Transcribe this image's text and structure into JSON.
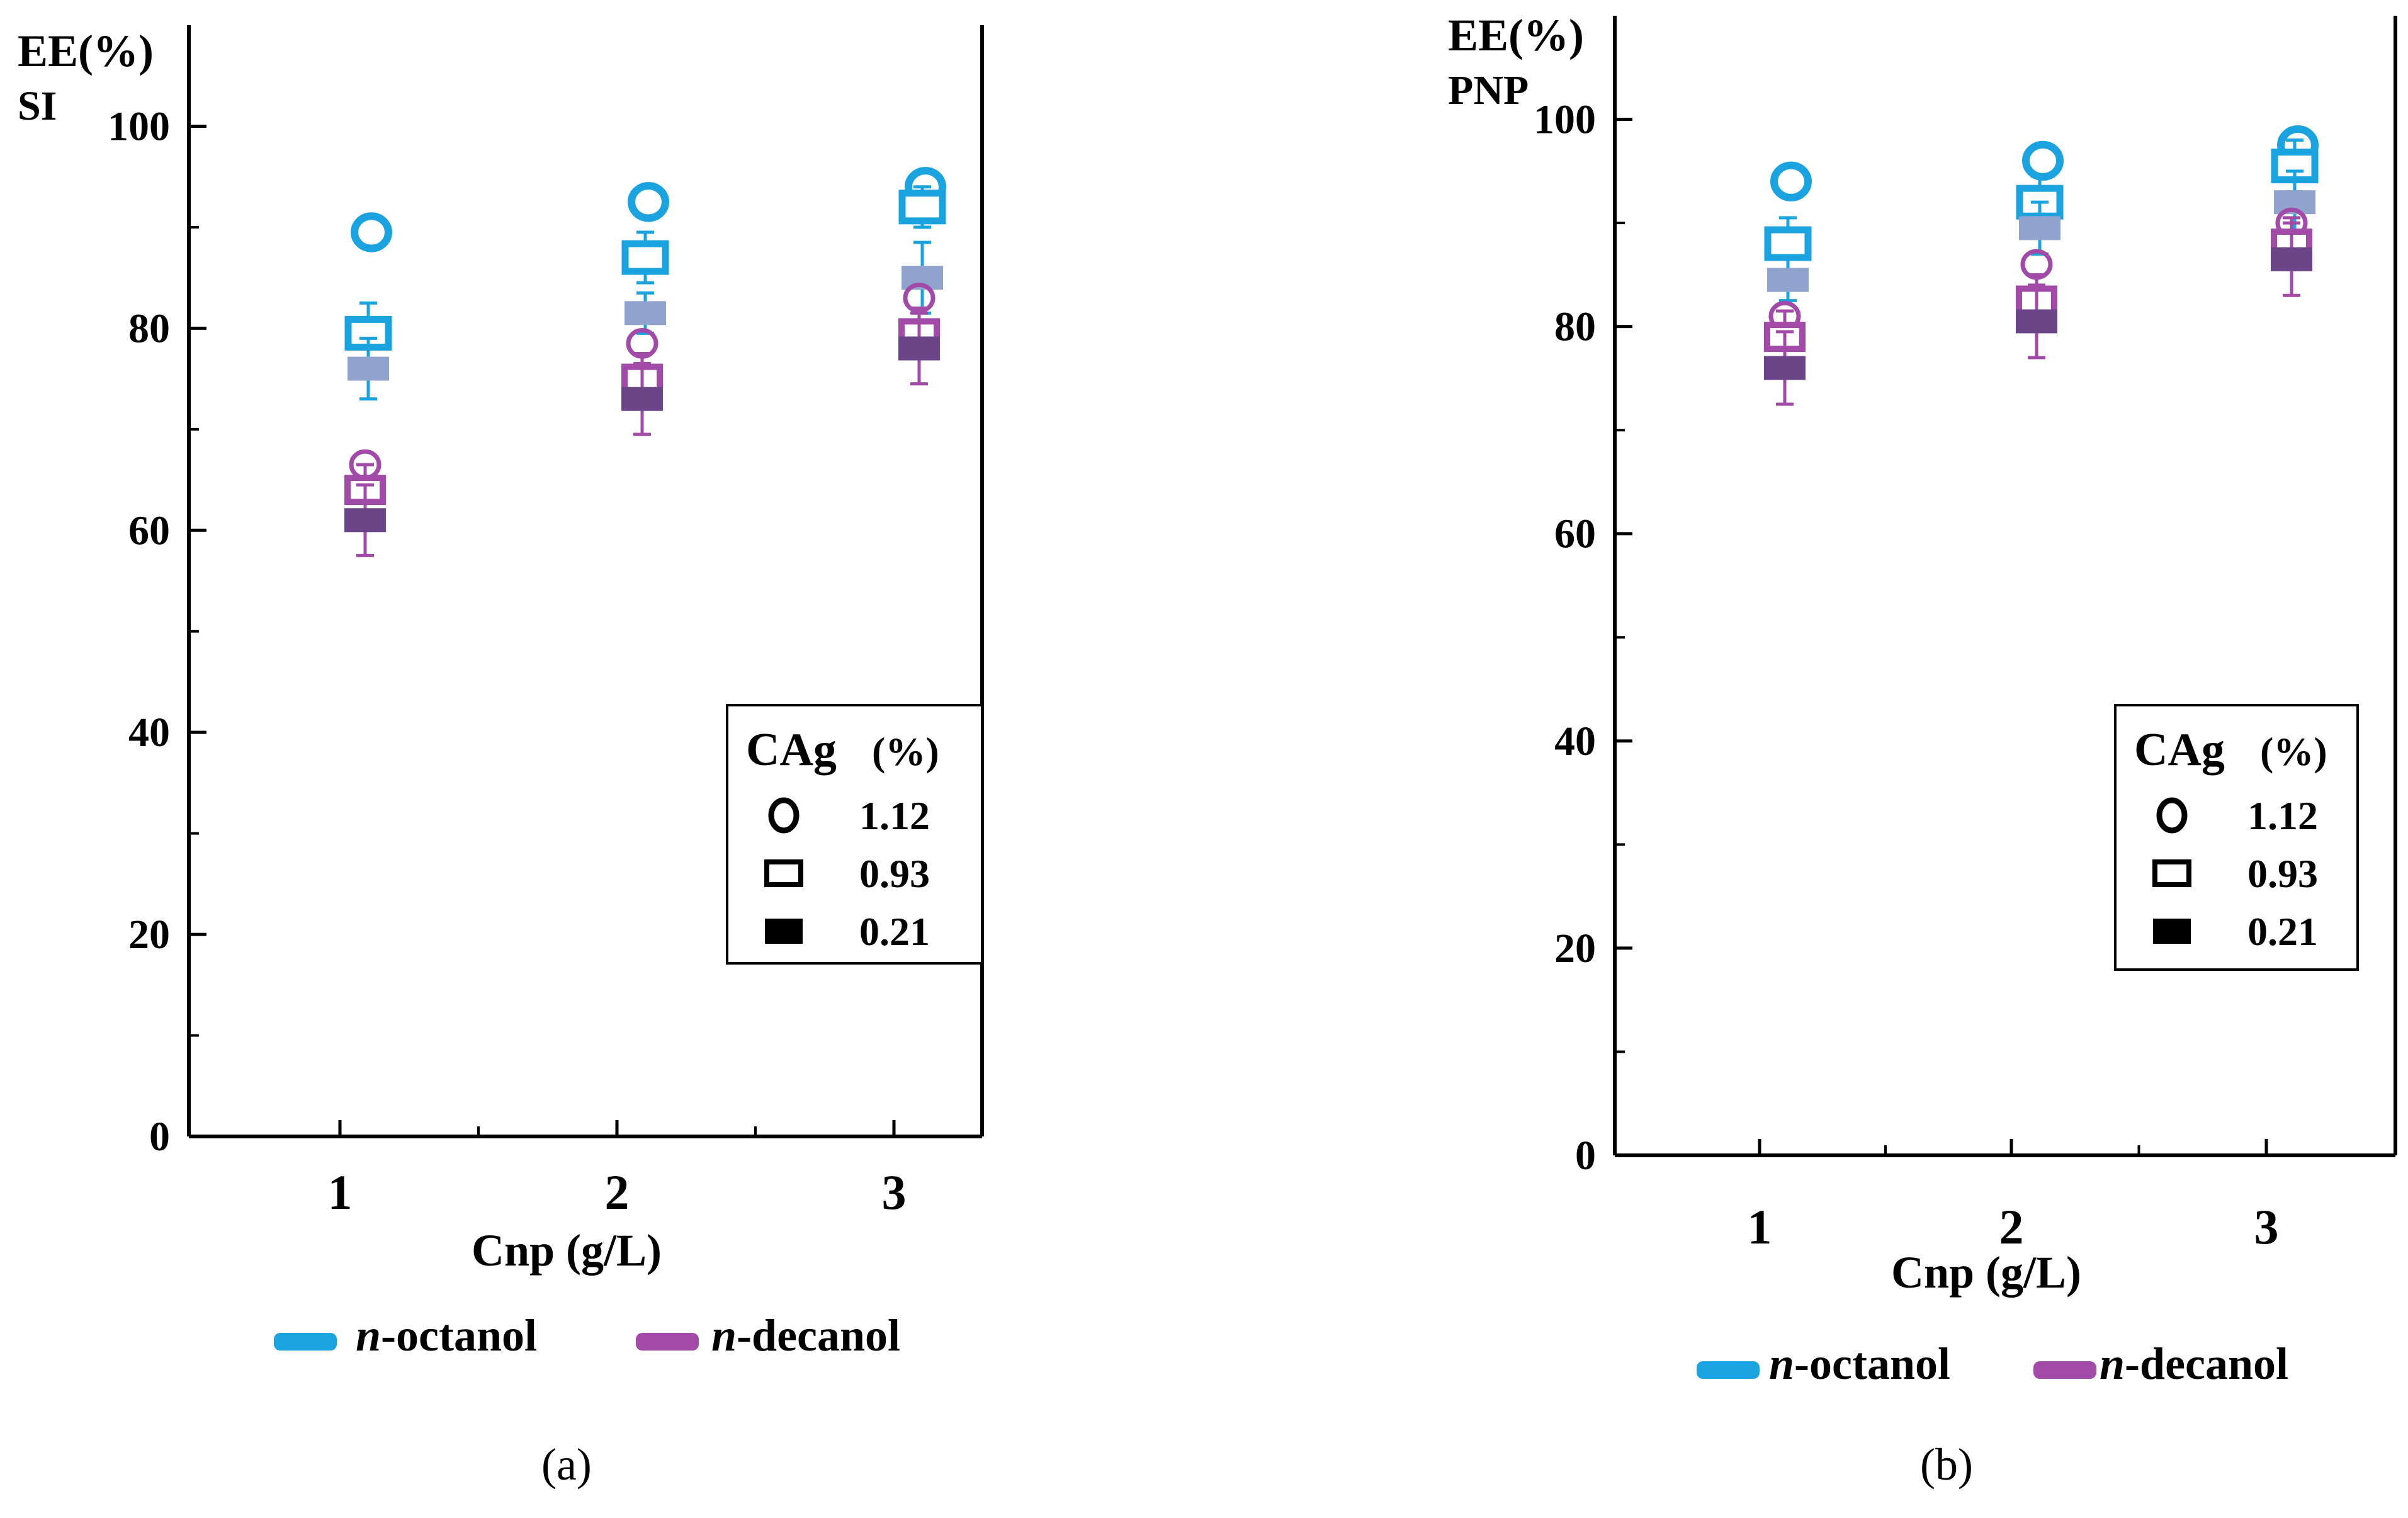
{
  "colors": {
    "n-octanol": "#1ba3e0",
    "n-octanol-light": "#8fa3cc",
    "n-decanol": "#a24aa8",
    "n-decanol-dark": "#6b4588",
    "axis": "#000000"
  },
  "legend": {
    "title_main": "CAg",
    "title_unit": "(%)",
    "entries": [
      {
        "marker": "circle-outline",
        "label": "1.12"
      },
      {
        "marker": "square-outline",
        "label": "0.93"
      },
      {
        "marker": "square-filled",
        "label": "0.21"
      }
    ]
  },
  "series_legend": [
    {
      "key": "n-octanol",
      "prefix": "n",
      "name": "-octanol"
    },
    {
      "key": "n-decanol",
      "prefix": "n",
      "name": "-decanol"
    }
  ],
  "chart_data": [
    {
      "type": "scatter",
      "panel_label": "(a)",
      "ylabel": "EE(%)",
      "ylabel_sub": "SI",
      "xlabel": "Cnp (g/L)",
      "ylim": [
        0,
        110
      ],
      "yticks": [
        0,
        20,
        40,
        60,
        80,
        100
      ],
      "xlim": [
        0.5,
        3.5
      ],
      "categories": [
        1,
        2,
        3
      ],
      "series": [
        {
          "name": "n-octanol",
          "cag": "1.12",
          "x": [
            1,
            2,
            3
          ],
          "values": [
            89.5,
            92.5,
            94
          ],
          "err": [
            0,
            0,
            0
          ]
        },
        {
          "name": "n-octanol",
          "cag": "0.93",
          "x": [
            1,
            2,
            3
          ],
          "values": [
            79.5,
            87,
            92
          ],
          "err": [
            3,
            2.5,
            2
          ]
        },
        {
          "name": "n-octanol",
          "cag": "0.21",
          "x": [
            1,
            2,
            3
          ],
          "values": [
            76,
            81.5,
            85
          ],
          "err": [
            3,
            2,
            3.5
          ]
        },
        {
          "name": "n-decanol",
          "cag": "1.12",
          "x": [
            1,
            2,
            3
          ],
          "values": [
            66.5,
            78.5,
            83
          ],
          "err": [
            0,
            0,
            0
          ]
        },
        {
          "name": "n-decanol",
          "cag": "0.93",
          "x": [
            1,
            2,
            3
          ],
          "values": [
            64,
            75,
            79.5
          ],
          "err": [
            2.5,
            2.5,
            2.5
          ]
        },
        {
          "name": "n-decanol",
          "cag": "0.21",
          "x": [
            1,
            2,
            3
          ],
          "values": [
            61,
            73,
            78
          ],
          "err": [
            3.5,
            3.5,
            3.5
          ]
        }
      ]
    },
    {
      "type": "scatter",
      "panel_label": "(b)",
      "ylabel": "EE(%)",
      "ylabel_sub": "PNP",
      "xlabel": "Cnp (g/L)",
      "ylim": [
        0,
        110
      ],
      "yticks": [
        0,
        20,
        40,
        60,
        80,
        100
      ],
      "xlim": [
        0.5,
        3.5
      ],
      "categories": [
        1,
        2,
        3
      ],
      "series": [
        {
          "name": "n-octanol",
          "cag": "1.12",
          "x": [
            1,
            2,
            3
          ],
          "values": [
            94,
            96,
            97.5
          ],
          "err": [
            0,
            0,
            0
          ]
        },
        {
          "name": "n-octanol",
          "cag": "0.93",
          "x": [
            1,
            2,
            3
          ],
          "values": [
            88,
            92,
            95.5
          ],
          "err": [
            2.5,
            2.5,
            2.5
          ]
        },
        {
          "name": "n-octanol",
          "cag": "0.21",
          "x": [
            1,
            2,
            3
          ],
          "values": [
            84.5,
            89.5,
            92
          ],
          "err": [
            2,
            2.5,
            3
          ]
        },
        {
          "name": "n-decanol",
          "cag": "1.12",
          "x": [
            1,
            2,
            3
          ],
          "values": [
            81,
            86,
            90
          ],
          "err": [
            0,
            0,
            0
          ]
        },
        {
          "name": "n-decanol",
          "cag": "0.93",
          "x": [
            1,
            2,
            3
          ],
          "values": [
            79,
            82.5,
            88
          ],
          "err": [
            2.5,
            2.5,
            2.5
          ]
        },
        {
          "name": "n-decanol",
          "cag": "0.21",
          "x": [
            1,
            2,
            3
          ],
          "values": [
            76,
            80.5,
            86.5
          ],
          "err": [
            3.5,
            3.5,
            3.5
          ]
        }
      ]
    }
  ]
}
